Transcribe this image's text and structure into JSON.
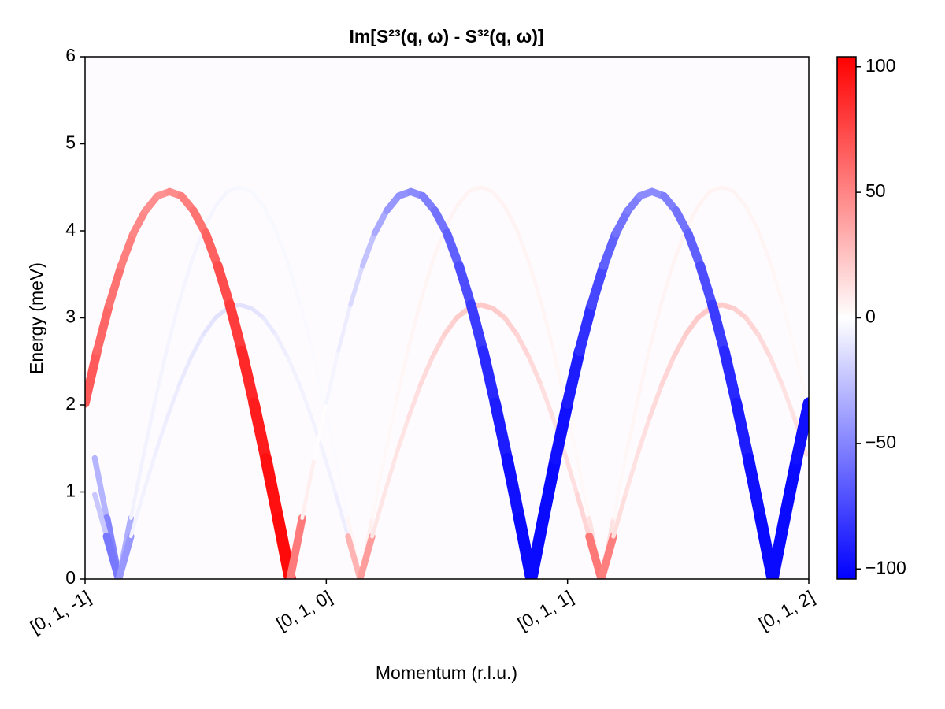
{
  "chart_data": {
    "type": "heatmap",
    "title": "Im[S²³(q, ω) - S³²(q, ω)]",
    "xlabel": "Momentum (r.l.u.)",
    "ylabel": "Energy (meV)",
    "xlim": [
      0,
      3
    ],
    "ylim": [
      0,
      6
    ],
    "xticks": [
      {
        "value": 0,
        "label": "[0, 1, -1]"
      },
      {
        "value": 1,
        "label": "[0, 1, 0]"
      },
      {
        "value": 2,
        "label": "[0, 1, 1]"
      },
      {
        "value": 3,
        "label": "[0, 1, 2]"
      }
    ],
    "yticks": [
      0,
      1,
      2,
      3,
      4,
      5,
      6
    ],
    "colormap": "bwr",
    "clim": [
      -104,
      104
    ],
    "cticks": [
      {
        "value": -100,
        "label": "−100"
      },
      {
        "value": -50,
        "label": "−50"
      },
      {
        "value": 0,
        "label": "0"
      },
      50,
      100
    ],
    "series": [
      {
        "x": [
          0.04,
          0.09,
          0.14,
          0.19,
          0.24,
          0.29,
          0.34,
          0.39,
          0.44,
          0.49,
          0.54,
          0.59,
          0.64,
          0.69,
          0.74,
          0.79,
          0.84,
          0.89,
          0.94,
          0.99,
          1.04,
          1.09,
          1.14,
          1.19,
          1.24,
          1.29,
          1.34,
          1.39,
          1.44,
          1.49,
          1.54,
          1.59,
          1.64,
          1.69,
          1.74,
          1.79,
          1.84,
          1.89,
          1.94,
          1.99,
          2.04,
          2.09,
          2.14,
          2.19,
          2.24,
          2.29,
          2.34,
          2.39,
          2.44,
          2.49,
          2.54,
          2.59,
          2.64,
          2.69,
          2.74,
          2.79,
          2.84,
          2.89,
          2.94,
          2.99
        ],
        "y": [
          1.39,
          0.7,
          0,
          0.7,
          1.39,
          2.04,
          2.65,
          3.18,
          3.64,
          4.01,
          4.28,
          4.45,
          4.5,
          4.45,
          4.28,
          4.01,
          3.64,
          3.18,
          2.65,
          2.04,
          1.39,
          0.7,
          0,
          0.7,
          1.39,
          2.04,
          2.65,
          3.18,
          3.64,
          4.01,
          4.28,
          4.45,
          4.5,
          4.45,
          4.28,
          4.01,
          3.64,
          3.18,
          2.65,
          2.04,
          1.39,
          0.7,
          0,
          0.7,
          1.39,
          2.04,
          2.65,
          3.18,
          3.64,
          4.01,
          4.28,
          4.45,
          4.5,
          4.45,
          4.28,
          4.01,
          3.64,
          3.18,
          2.65,
          2.04
        ],
        "values": [
          -20,
          -40,
          -60,
          -6,
          -5,
          -5,
          -4,
          -4,
          -4,
          -4,
          -4,
          -4,
          -3,
          -3,
          -3,
          -3,
          -3,
          -3,
          -2,
          -2,
          -2,
          -2,
          10,
          3,
          3,
          3,
          4,
          4,
          4,
          4,
          5,
          5,
          5,
          5,
          5,
          5,
          4,
          4,
          4,
          3,
          3,
          3,
          20,
          3,
          3,
          4,
          4,
          4,
          5,
          5,
          5,
          5,
          5,
          5,
          4,
          4,
          4,
          3,
          3,
          3
        ]
      },
      {
        "x": [
          0.04,
          0.09,
          0.14,
          0.19,
          0.24,
          0.29,
          0.34,
          0.39,
          0.44,
          0.49,
          0.54,
          0.59,
          0.64,
          0.69,
          0.74,
          0.79,
          0.84,
          0.89,
          0.94,
          0.99,
          1.04,
          1.09,
          1.14,
          1.19,
          1.24,
          1.29,
          1.34,
          1.39,
          1.44,
          1.49,
          1.54,
          1.59,
          1.64,
          1.69,
          1.74,
          1.79,
          1.84,
          1.89,
          1.94,
          1.99,
          2.04,
          2.09,
          2.14,
          2.19,
          2.24,
          2.29,
          2.34,
          2.39,
          2.44,
          2.49,
          2.54,
          2.59,
          2.64,
          2.69,
          2.74,
          2.79,
          2.84,
          2.89,
          2.94,
          2.99
        ],
        "y": [
          0.97,
          0.49,
          0,
          0.49,
          0.97,
          1.43,
          1.85,
          2.23,
          2.55,
          2.81,
          3.0,
          3.11,
          3.15,
          3.11,
          3.0,
          2.81,
          2.55,
          2.23,
          1.85,
          1.43,
          0.97,
          0.49,
          0,
          0.49,
          0.97,
          1.43,
          1.85,
          2.23,
          2.55,
          2.81,
          3.0,
          3.11,
          3.15,
          3.11,
          3.0,
          2.81,
          2.55,
          2.23,
          1.85,
          1.43,
          0.97,
          0.49,
          0,
          0.49,
          0.97,
          1.43,
          1.85,
          2.23,
          2.55,
          2.81,
          3.0,
          3.11,
          3.15,
          3.11,
          3.0,
          2.81,
          2.55,
          2.23,
          1.85,
          1.43
        ],
        "values": [
          -15,
          -30,
          -80,
          -5,
          -5,
          -6,
          -7,
          -8,
          -9,
          -10,
          -12,
          -12,
          -12,
          -12,
          -10,
          -8,
          -6,
          -5,
          -5,
          -5,
          -6,
          -8,
          70,
          10,
          10,
          10,
          12,
          14,
          16,
          18,
          20,
          22,
          22,
          22,
          20,
          18,
          16,
          14,
          12,
          12,
          14,
          20,
          90,
          15,
          12,
          12,
          14,
          16,
          18,
          20,
          22,
          22,
          22,
          20,
          18,
          16,
          14,
          12,
          12,
          14
        ]
      },
      {
        "x": [
          0,
          0.05,
          0.1,
          0.15,
          0.2,
          0.25,
          0.3,
          0.35,
          0.4,
          0.45,
          0.5,
          0.55,
          0.6,
          0.65,
          0.7,
          0.75,
          0.8,
          0.85,
          0.9,
          0.95,
          1,
          1.05,
          1.1,
          1.15,
          1.2,
          1.25,
          1.3,
          1.35,
          1.4,
          1.45,
          1.5,
          1.55,
          1.6,
          1.65,
          1.7,
          1.75,
          1.8,
          1.85,
          1.9,
          1.95,
          2,
          2.05,
          2.1,
          2.15,
          2.2,
          2.25,
          2.3,
          2.35,
          2.4,
          2.45,
          2.5,
          2.55,
          2.6,
          2.65,
          2.7,
          2.75,
          2.8,
          2.85,
          2.9,
          2.95,
          3
        ],
        "y": [
          2.02,
          2.62,
          3.15,
          3.6,
          3.97,
          4.23,
          4.4,
          4.45,
          4.4,
          4.23,
          3.97,
          3.6,
          3.15,
          2.62,
          2.02,
          1.38,
          0.7,
          0,
          0.7,
          1.38,
          2.02,
          2.62,
          3.15,
          3.6,
          3.97,
          4.23,
          4.4,
          4.45,
          4.4,
          4.23,
          3.97,
          3.6,
          3.15,
          2.62,
          2.02,
          1.38,
          0.7,
          0,
          0.7,
          1.38,
          2.02,
          2.62,
          3.15,
          3.6,
          3.97,
          4.23,
          4.4,
          4.45,
          4.4,
          4.23,
          3.97,
          3.6,
          3.15,
          2.62,
          2.02,
          1.38,
          0.7,
          0,
          0.7,
          1.38,
          2.02
        ],
        "values": [
          70,
          65,
          60,
          55,
          50,
          48,
          45,
          45,
          50,
          55,
          60,
          70,
          75,
          85,
          90,
          95,
          100,
          100,
          8,
          5,
          -3,
          -5,
          -10,
          -20,
          -30,
          -40,
          -45,
          -45,
          -50,
          -55,
          -60,
          -70,
          -75,
          -85,
          -90,
          -95,
          -100,
          -100,
          -100,
          -100,
          -95,
          -90,
          -80,
          -70,
          -60,
          -55,
          -50,
          -45,
          -50,
          -55,
          -60,
          -70,
          -75,
          -85,
          -90,
          -95,
          -100,
          -100,
          -100,
          -100,
          -95
        ]
      }
    ]
  }
}
